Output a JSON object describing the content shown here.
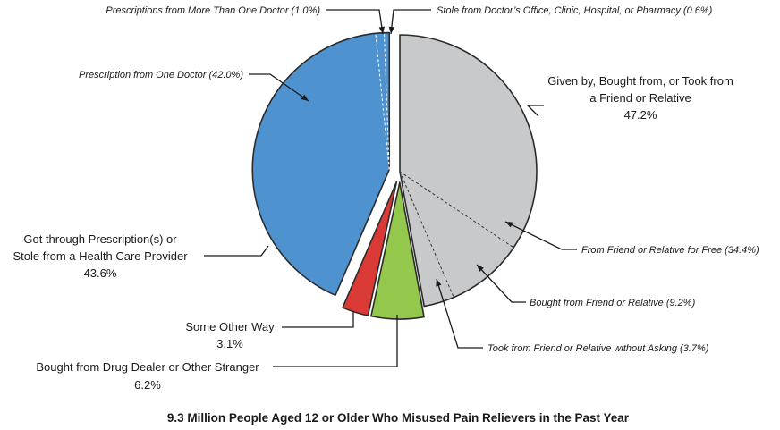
{
  "chart_data": {
    "type": "pie",
    "title": "9.3 Million People Aged 12 or Older Who Misused Pain Relievers in the Past Year",
    "slices": [
      {
        "name": "Given by, Bought from, or Took from a Friend or Relative",
        "lines": [
          "Given by, Bought from, or Took from",
          "a Friend or Relative"
        ],
        "value_label": "47.2%",
        "value": 47.2,
        "color": "#c8c9cb",
        "exploded": false,
        "sub": [
          {
            "label": "From Friend or Relative for Free (34.4%)",
            "value": 34.4
          },
          {
            "label": "Bought from Friend or Relative (9.2%)",
            "value": 9.2
          },
          {
            "label": "Took from Friend or Relative without Asking (3.7%)",
            "value": 3.7
          }
        ]
      },
      {
        "name": "Bought from Drug Dealer or Other Stranger",
        "lines": [
          "Bought from Drug Dealer or Other Stranger"
        ],
        "value_label": "6.2%",
        "value": 6.2,
        "color": "#94c84d",
        "exploded": true,
        "sub": []
      },
      {
        "name": "Some Other Way",
        "lines": [
          "Some Other Way"
        ],
        "value_label": "3.1%",
        "value": 3.1,
        "color": "#d93a35",
        "exploded": true,
        "sub": []
      },
      {
        "name": "Got through Prescription(s) or Stole from a Health Care Provider",
        "lines": [
          "Got through Prescription(s) or",
          "Stole from a Health Care Provider"
        ],
        "value_label": "43.6%",
        "value": 43.6,
        "color": "#4e93cf",
        "exploded": true,
        "sub": [
          {
            "label": "Prescription from One Doctor (42.0%)",
            "value": 42.0
          },
          {
            "label": "Prescriptions from More Than One Doctor (1.0%)",
            "value": 1.0
          },
          {
            "label": "Stole from Doctor’s Office, Clinic, Hospital, or Pharmacy (0.6%)",
            "value": 0.6
          }
        ]
      }
    ]
  }
}
